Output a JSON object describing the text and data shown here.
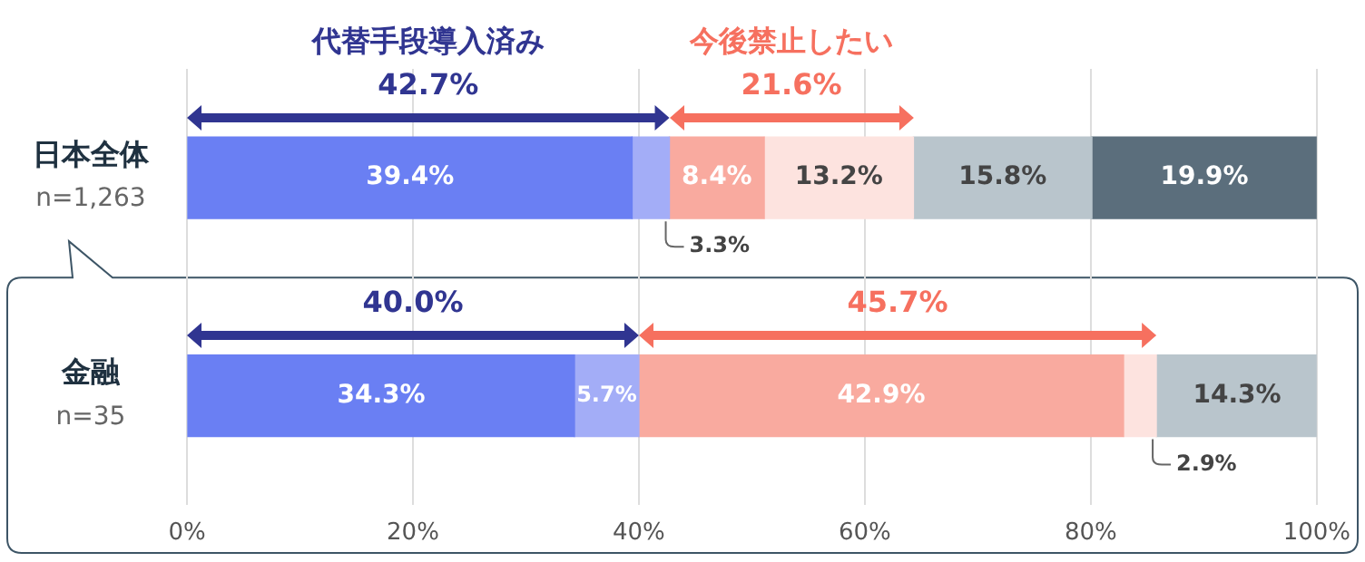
{
  "chart_data": {
    "type": "bar",
    "orientation": "horizontal",
    "stacked": true,
    "categories": [
      "日本全体\nn=1,263",
      "金融\nn=35"
    ],
    "series": [
      {
        "color": "#6a7ff3",
        "values": [
          39.4,
          34.3
        ],
        "value_labels": [
          "39.4%",
          "34.3%"
        ]
      },
      {
        "color": "#a3adf7",
        "values": [
          3.3,
          5.7
        ],
        "value_labels": [
          "3.3%",
          "5.7%"
        ]
      },
      {
        "color": "#f9aa9f",
        "values": [
          8.4,
          42.9
        ],
        "value_labels": [
          "8.4%",
          "42.9%"
        ]
      },
      {
        "color": "#fde3df",
        "values": [
          13.2,
          2.9
        ],
        "value_labels": [
          "13.2%",
          "2.9%"
        ]
      },
      {
        "color": "#b9c5cc",
        "values": [
          15.8,
          14.3
        ],
        "value_labels": [
          "15.8%",
          "14.3%"
        ]
      },
      {
        "color": "#5b6e7c",
        "values": [
          19.9,
          null
        ],
        "value_labels": [
          "19.9%",
          null
        ]
      }
    ],
    "annotations": [
      "代替手段導入済み",
      "今後禁止したい",
      "42.7%",
      "21.6%",
      "40.0%",
      "45.7%"
    ],
    "xlim": [
      0,
      100
    ],
    "xticks": [
      {
        "value": 0,
        "label": "0%"
      },
      {
        "value": 20,
        "label": "20%"
      },
      {
        "value": 40,
        "label": "40%"
      },
      {
        "value": 60,
        "label": "60%"
      },
      {
        "value": 80,
        "label": "80%"
      },
      {
        "value": 100,
        "label": "100%"
      }
    ],
    "grid": "x",
    "legend": false
  }
}
